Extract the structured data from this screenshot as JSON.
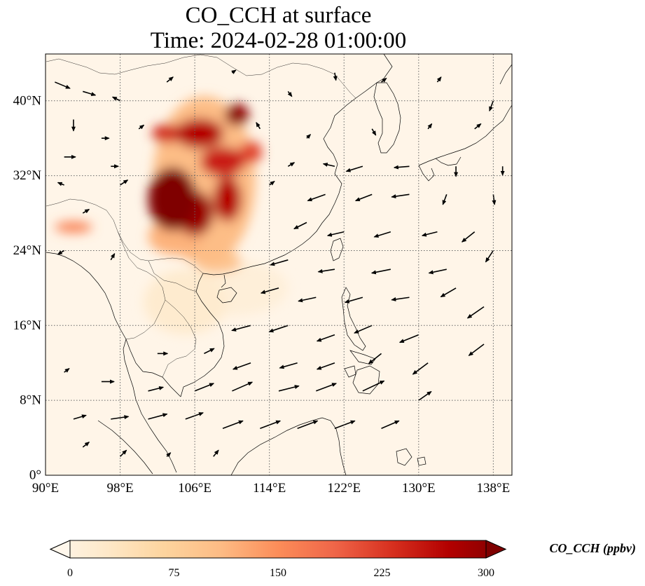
{
  "title": {
    "line1": "CO_CCH at surface",
    "line2": "Time: 2024-02-28 01:00:00"
  },
  "map": {
    "extent": {
      "lon": [
        90,
        140
      ],
      "lat": [
        0,
        45
      ]
    },
    "lon_ticks": [
      {
        "value": 90,
        "label": "90°E"
      },
      {
        "value": 98,
        "label": "98°E"
      },
      {
        "value": 106,
        "label": "106°E"
      },
      {
        "value": 114,
        "label": "114°E"
      },
      {
        "value": 122,
        "label": "122°E"
      },
      {
        "value": 130,
        "label": "130°E"
      },
      {
        "value": 138,
        "label": "138°E"
      }
    ],
    "lat_ticks": [
      {
        "value": 0,
        "label": "0°"
      },
      {
        "value": 8,
        "label": "8°N"
      },
      {
        "value": 16,
        "label": "16°N"
      },
      {
        "value": 24,
        "label": "24°N"
      },
      {
        "value": 32,
        "label": "32°N"
      },
      {
        "value": 40,
        "label": "40°N"
      }
    ],
    "gridlines": "dotted",
    "field_colormap": "OrRd",
    "field_background": "#fff5e8",
    "plumes": [
      {
        "lon": 103.6,
        "lat": 29.5,
        "rx": 2.6,
        "ry": 3.4,
        "value": 300
      },
      {
        "lon": 106.0,
        "lat": 28.0,
        "rx": 2.0,
        "ry": 2.4,
        "value": 280
      },
      {
        "lon": 109.5,
        "lat": 29.5,
        "rx": 1.5,
        "ry": 2.4,
        "value": 260
      },
      {
        "lon": 109.0,
        "lat": 33.5,
        "rx": 2.4,
        "ry": 1.6,
        "value": 240
      },
      {
        "lon": 110.5,
        "lat": 38.5,
        "rx": 1.3,
        "ry": 1.2,
        "value": 290
      },
      {
        "lon": 106.5,
        "lat": 36.5,
        "rx": 2.6,
        "ry": 1.6,
        "value": 260
      },
      {
        "lon": 103.0,
        "lat": 36.5,
        "rx": 1.6,
        "ry": 1.0,
        "value": 230
      },
      {
        "lon": 112.0,
        "lat": 34.5,
        "rx": 1.2,
        "ry": 1.2,
        "value": 210
      },
      {
        "lon": 107.0,
        "lat": 31.5,
        "rx": 5.5,
        "ry": 9.0,
        "value": 110
      },
      {
        "lon": 104.0,
        "lat": 25.5,
        "rx": 3.0,
        "ry": 2.0,
        "value": 120
      },
      {
        "lon": 108.5,
        "lat": 22.8,
        "rx": 2.5,
        "ry": 1.2,
        "value": 100
      },
      {
        "lon": 93.0,
        "lat": 26.5,
        "rx": 2.0,
        "ry": 0.6,
        "value": 160
      },
      {
        "lon": 105.0,
        "lat": 18.5,
        "rx": 4.5,
        "ry": 3.5,
        "value": 30
      },
      {
        "lon": 110.0,
        "lat": 20.0,
        "rx": 6.0,
        "ry": 3.0,
        "value": 20
      }
    ],
    "wind_vectors": [
      [
        91,
        42,
        1.2,
        -0.5
      ],
      [
        94,
        41,
        1.0,
        -0.3
      ],
      [
        98,
        40,
        -0.6,
        0.3
      ],
      [
        103,
        42,
        0.5,
        0.4
      ],
      [
        110,
        43,
        0.3,
        0.2
      ],
      [
        116,
        41,
        0.3,
        -0.4
      ],
      [
        121,
        43,
        0.1,
        -0.6
      ],
      [
        126,
        42,
        0.4,
        0.3
      ],
      [
        132,
        42,
        0.3,
        0.4
      ],
      [
        138,
        40,
        -0.3,
        -0.8
      ],
      [
        93,
        38,
        0.0,
        -0.9
      ],
      [
        96,
        36,
        0.6,
        0.0
      ],
      [
        100,
        37,
        0.4,
        0.3
      ],
      [
        113,
        37,
        -0.3,
        0.5
      ],
      [
        118,
        36,
        0.3,
        0.3
      ],
      [
        125,
        37,
        0.3,
        -0.5
      ],
      [
        131,
        37,
        0.3,
        0.4
      ],
      [
        136,
        37,
        0.5,
        0.4
      ],
      [
        92,
        34,
        0.9,
        0.0
      ],
      [
        97,
        33,
        0.6,
        0.0
      ],
      [
        116,
        33,
        0.5,
        0.3
      ],
      [
        121,
        33,
        -0.9,
        0.2
      ],
      [
        124,
        33,
        -1.3,
        -0.4
      ],
      [
        129,
        33,
        -1.2,
        -0.1
      ],
      [
        134,
        33,
        0.0,
        -0.8
      ],
      [
        139,
        33,
        0.0,
        -0.7
      ],
      [
        92,
        31,
        -0.5,
        0.2
      ],
      [
        98,
        31,
        0.6,
        0.4
      ],
      [
        114,
        31,
        0.4,
        0.3
      ],
      [
        120,
        30,
        -1.4,
        -0.5
      ],
      [
        125,
        30,
        -1.3,
        -0.5
      ],
      [
        129,
        30,
        -1.4,
        -0.2
      ],
      [
        133,
        30,
        -0.3,
        -0.8
      ],
      [
        138,
        30,
        0.1,
        -0.8
      ],
      [
        94,
        28,
        0.5,
        0.3
      ],
      [
        118,
        27,
        -1.0,
        -0.5
      ],
      [
        122,
        26,
        -1.3,
        -0.3
      ],
      [
        127,
        26,
        -1.3,
        -0.4
      ],
      [
        132,
        26,
        -1.2,
        -0.3
      ],
      [
        136,
        26,
        -1.0,
        -0.8
      ],
      [
        92,
        24,
        -0.5,
        -0.3
      ],
      [
        97,
        23,
        0.3,
        0.5
      ],
      [
        116,
        23,
        -1.4,
        -0.4
      ],
      [
        121,
        22,
        -1.3,
        -0.2
      ],
      [
        127,
        22,
        -1.5,
        -0.3
      ],
      [
        133,
        22,
        -1.4,
        -0.3
      ],
      [
        138,
        24,
        -0.6,
        -0.9
      ],
      [
        115,
        20,
        -1.4,
        -0.4
      ],
      [
        119,
        19,
        -1.4,
        -0.3
      ],
      [
        124,
        19,
        -1.4,
        -0.4
      ],
      [
        129,
        19,
        -1.4,
        -0.2
      ],
      [
        134,
        20,
        -1.2,
        -0.7
      ],
      [
        137,
        18,
        -1.3,
        -0.9
      ],
      [
        112,
        16,
        -1.5,
        -0.4
      ],
      [
        116,
        16,
        -1.5,
        -0.5
      ],
      [
        121,
        15,
        -1.4,
        -0.5
      ],
      [
        125,
        16,
        -1.4,
        -0.6
      ],
      [
        130,
        15,
        -1.5,
        -0.6
      ],
      [
        137,
        14,
        -1.2,
        -0.9
      ],
      [
        102,
        13,
        0.8,
        0.0
      ],
      [
        107,
        13,
        0.8,
        0.4
      ],
      [
        112,
        12,
        -1.4,
        -0.5
      ],
      [
        117,
        12,
        -1.4,
        -0.4
      ],
      [
        121,
        12,
        -1.4,
        -0.5
      ],
      [
        126,
        13,
        -1.0,
        -0.8
      ],
      [
        131,
        12,
        -1.2,
        -0.9
      ],
      [
        92,
        11,
        0.4,
        0.3
      ],
      [
        96,
        10,
        1.0,
        0.0
      ],
      [
        101,
        9,
        1.2,
        0.3
      ],
      [
        106,
        9,
        1.5,
        0.6
      ],
      [
        110,
        9,
        1.6,
        0.7
      ],
      [
        115,
        9,
        1.6,
        0.4
      ],
      [
        119,
        9,
        1.6,
        0.6
      ],
      [
        124,
        9,
        1.7,
        0.8
      ],
      [
        130,
        8,
        1.0,
        0.7
      ],
      [
        93,
        6,
        1.0,
        0.3
      ],
      [
        97,
        6,
        1.4,
        0.2
      ],
      [
        101,
        6,
        1.5,
        0.4
      ],
      [
        105,
        6,
        1.4,
        0.5
      ],
      [
        109,
        5,
        1.6,
        0.6
      ],
      [
        113,
        5,
        1.6,
        0.6
      ],
      [
        117,
        5,
        1.6,
        0.6
      ],
      [
        121,
        5,
        1.6,
        0.6
      ],
      [
        126,
        5,
        1.4,
        0.6
      ],
      [
        94,
        3,
        0.5,
        0.4
      ],
      [
        98,
        2,
        0.5,
        0.5
      ],
      [
        103,
        2,
        0.3,
        0.3
      ],
      [
        108,
        2,
        0.4,
        0.5
      ]
    ]
  },
  "colorbar": {
    "title": "CO_CCH (ppbv)",
    "ticks": [
      0,
      75,
      150,
      225,
      300
    ],
    "range": [
      0,
      300
    ],
    "extend": "both",
    "stops": [
      "#fff7ec",
      "#fee8c8",
      "#fdd49e",
      "#fdbb84",
      "#fc8d59",
      "#ef6548",
      "#d7301f",
      "#b30000",
      "#7f0000"
    ]
  }
}
